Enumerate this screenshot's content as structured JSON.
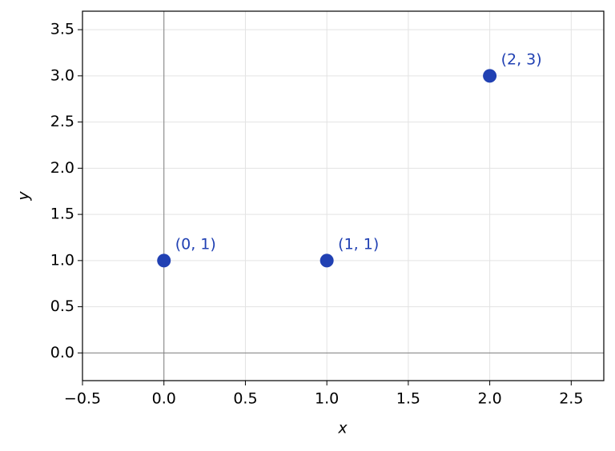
{
  "chart_data": {
    "type": "scatter",
    "x_label": "x",
    "y_label": "y",
    "x": [
      0,
      1,
      2
    ],
    "y": [
      1,
      1,
      3
    ],
    "value_labels": [
      "(0, 1)",
      "(1, 1)",
      "(2, 3)"
    ],
    "color": "#2141b3",
    "xlim": [
      -0.5,
      2.7
    ],
    "ylim": [
      -0.3,
      3.7
    ],
    "xticks": [
      {
        "value": -0.5,
        "label": "−0.5"
      },
      {
        "value": 0,
        "label": "0.0"
      },
      0.5,
      {
        "value": 1,
        "label": "1.0"
      },
      1.5,
      {
        "value": 2,
        "label": "2.0"
      },
      2.5
    ],
    "yticks": [
      {
        "value": 0,
        "label": "0.0"
      },
      0.5,
      {
        "value": 1,
        "label": "1.0"
      },
      1.5,
      {
        "value": 2,
        "label": "2.0"
      },
      2.5,
      {
        "value": 3,
        "label": "3.0"
      },
      3.5
    ],
    "grid": true,
    "hline": 0,
    "vline": 0
  }
}
